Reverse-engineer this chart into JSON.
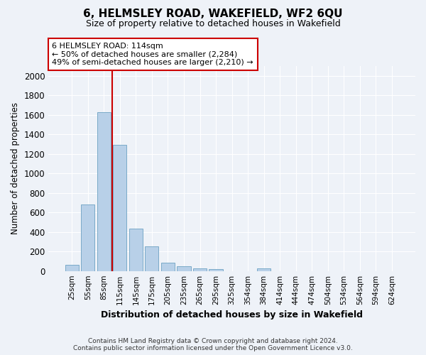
{
  "title": "6, HELMSLEY ROAD, WAKEFIELD, WF2 6QU",
  "subtitle": "Size of property relative to detached houses in Wakefield",
  "xlabel": "Distribution of detached houses by size in Wakefield",
  "ylabel": "Number of detached properties",
  "categories": [
    "25sqm",
    "55sqm",
    "85sqm",
    "115sqm",
    "145sqm",
    "175sqm",
    "205sqm",
    "235sqm",
    "265sqm",
    "295sqm",
    "325sqm",
    "354sqm",
    "384sqm",
    "414sqm",
    "444sqm",
    "474sqm",
    "504sqm",
    "534sqm",
    "564sqm",
    "594sqm",
    "624sqm"
  ],
  "values": [
    65,
    680,
    1630,
    1290,
    435,
    250,
    85,
    50,
    30,
    20,
    0,
    0,
    25,
    0,
    0,
    0,
    0,
    0,
    0,
    0,
    0
  ],
  "bar_color": "#b8d0e8",
  "bar_edge_color": "#7aaac8",
  "marker_line_color": "#cc0000",
  "annotation_line1": "6 HELMSLEY ROAD: 114sqm",
  "annotation_line2": "← 50% of detached houses are smaller (2,284)",
  "annotation_line3": "49% of semi-detached houses are larger (2,210) →",
  "annotation_box_color": "#ffffff",
  "annotation_box_edge": "#cc0000",
  "ylim": [
    0,
    2100
  ],
  "yticks": [
    0,
    200,
    400,
    600,
    800,
    1000,
    1200,
    1400,
    1600,
    1800,
    2000
  ],
  "footer": "Contains HM Land Registry data © Crown copyright and database right 2024.\nContains public sector information licensed under the Open Government Licence v3.0.",
  "bg_color": "#eef2f8",
  "grid_color": "#ffffff",
  "marker_index": 2.5
}
